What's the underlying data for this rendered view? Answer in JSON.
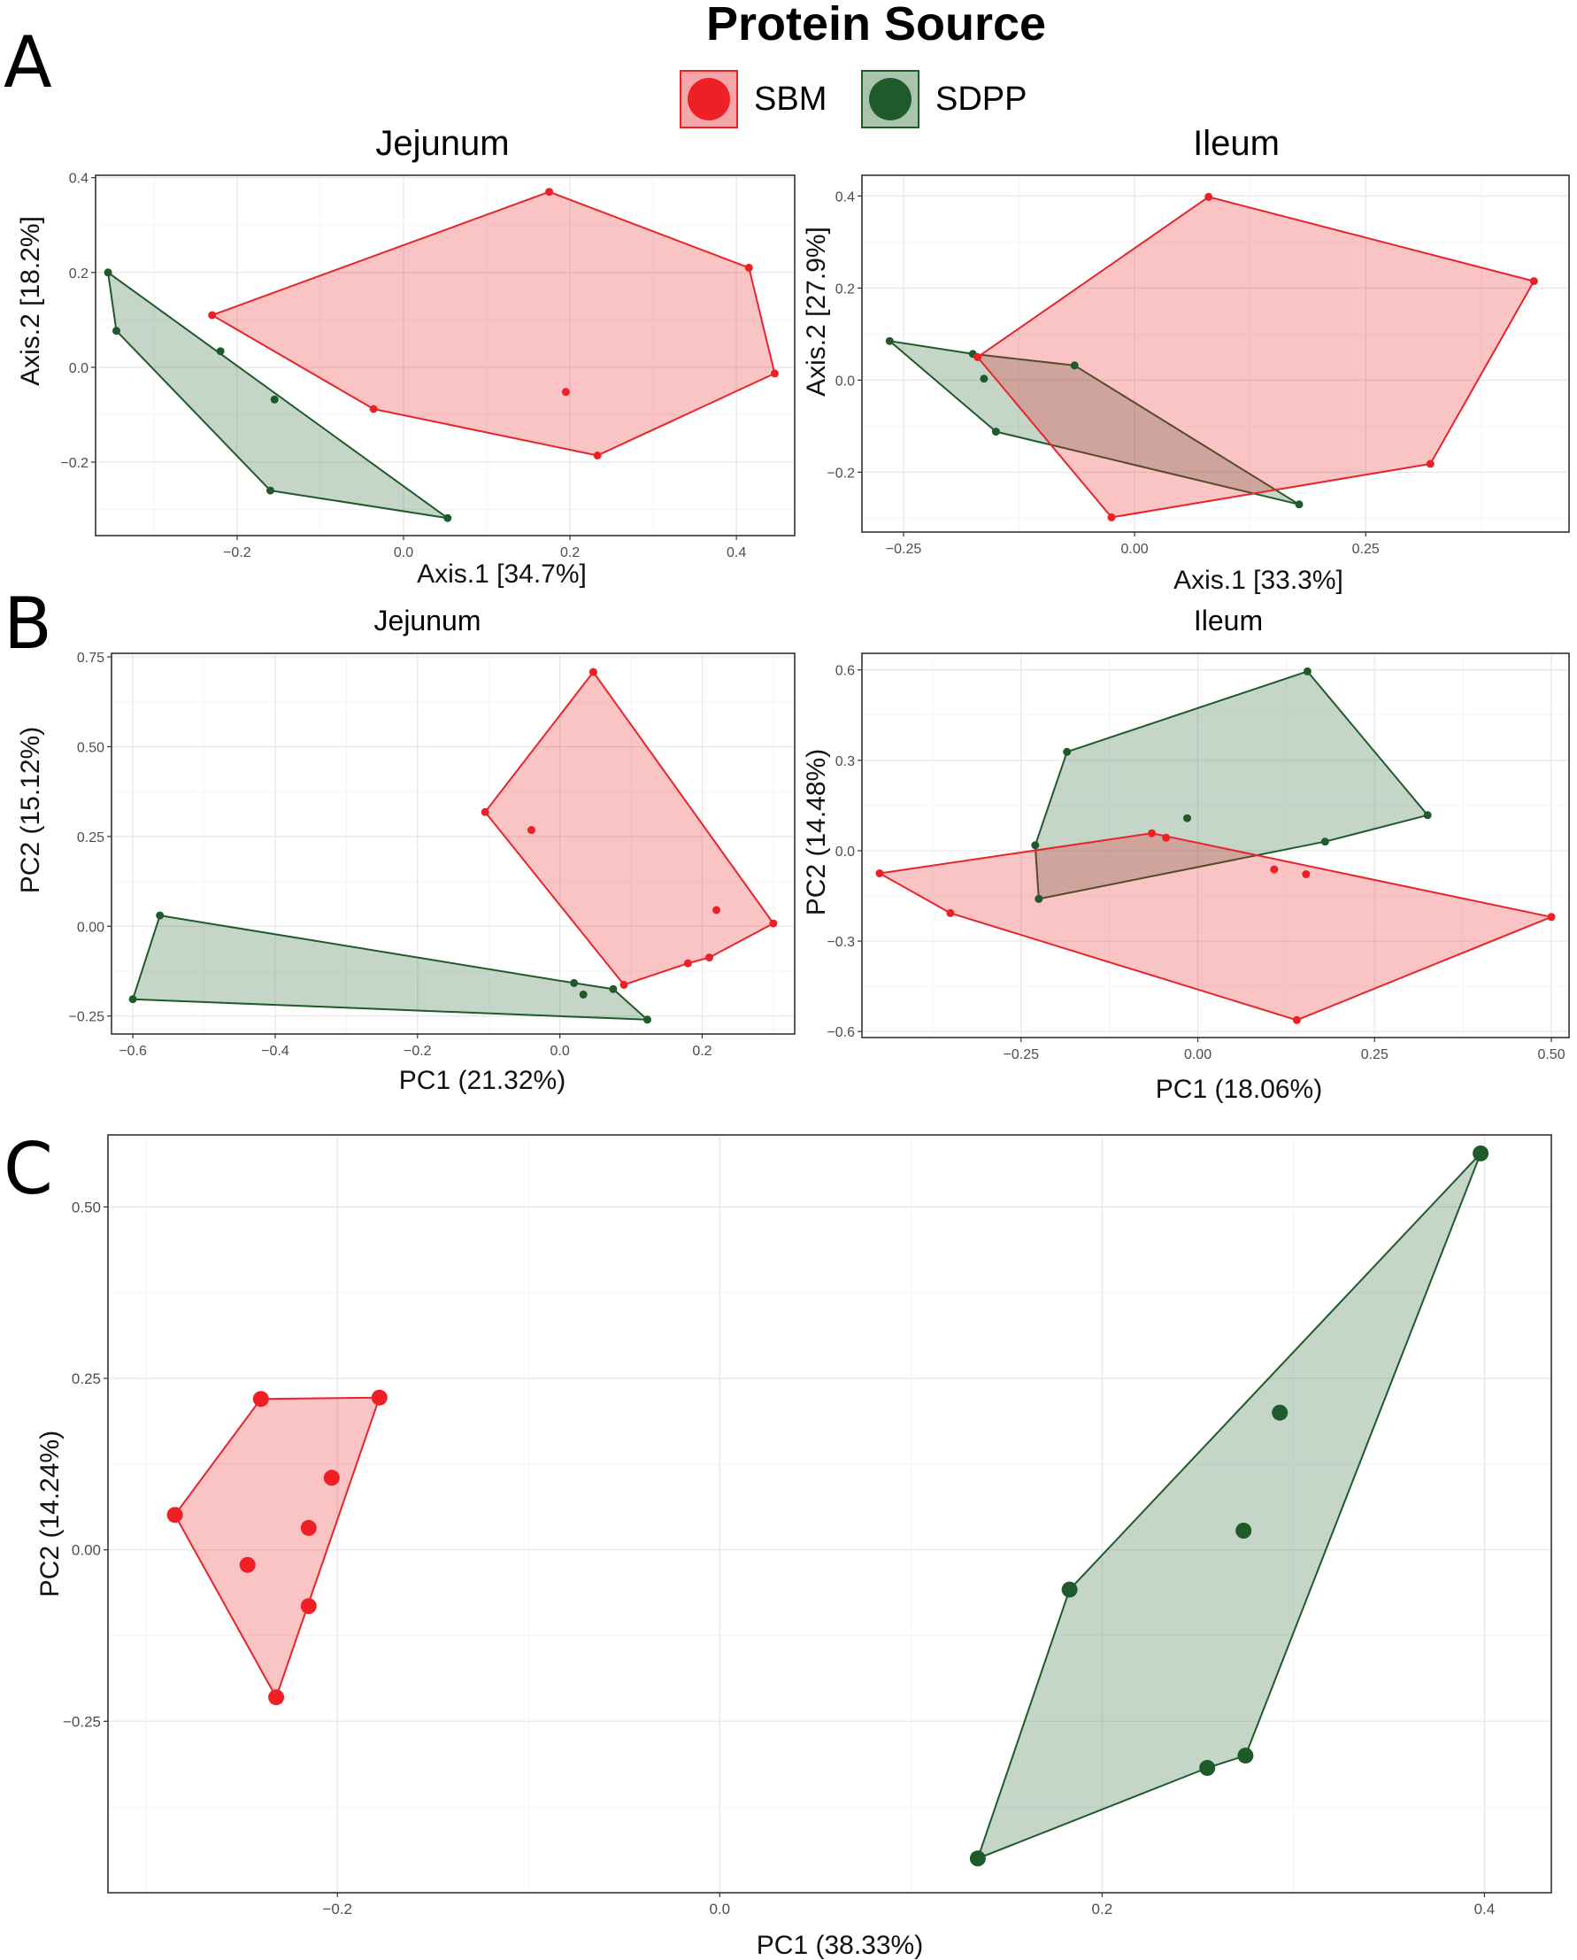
{
  "legend": {
    "title": "Protein Source",
    "items": [
      {
        "label": "SBM",
        "color": "#ee2026",
        "fill": "#f4a6a8"
      },
      {
        "label": "SDPP",
        "color": "#1f5b2a",
        "fill": "#a9c3ad"
      }
    ]
  },
  "panel_labels": {
    "a": "A",
    "b": "B",
    "c": "C"
  },
  "colors": {
    "sbm_point": "#ee2026",
    "sbm_line": "#e8242b",
    "sbm_fill": "rgba(238,32,38,0.27)",
    "sdpp_point": "#1f5b2a",
    "sdpp_line": "#1f5b2a",
    "sdpp_fill": "rgba(40,100,50,0.27)"
  },
  "chart_data": [
    {
      "id": "A-jejunum",
      "type": "scatter",
      "title": "Jejunum",
      "xlabel": "Axis.1   [34.7%]",
      "ylabel": "Axis.2   [18.2%]",
      "xlim": [
        -0.37,
        0.47
      ],
      "ylim": [
        -0.355,
        0.405
      ],
      "xticks": [
        -0.2,
        0.0,
        0.2,
        0.4
      ],
      "xtick_labels": [
        "−0.2",
        "0.0",
        "0.2",
        "0.4"
      ],
      "yticks": [
        -0.2,
        0.0,
        0.2,
        0.4
      ],
      "ytick_labels": [
        "−0.2",
        "0.0",
        "0.2",
        "0.4"
      ],
      "series": [
        {
          "name": "SBM",
          "points": [
            [
              -0.23,
              0.11
            ],
            [
              0.175,
              0.37
            ],
            [
              0.415,
              0.21
            ],
            [
              0.446,
              -0.013
            ],
            [
              0.233,
              -0.186
            ],
            [
              -0.036,
              -0.088
            ],
            [
              0.195,
              -0.052
            ]
          ],
          "hull": [
            [
              -0.23,
              0.11
            ],
            [
              0.175,
              0.37
            ],
            [
              0.415,
              0.21
            ],
            [
              0.446,
              -0.013
            ],
            [
              0.233,
              -0.186
            ],
            [
              -0.036,
              -0.088
            ]
          ]
        },
        {
          "name": "SDPP",
          "points": [
            [
              -0.355,
              0.2
            ],
            [
              -0.345,
              0.077
            ],
            [
              -0.22,
              0.034
            ],
            [
              -0.155,
              -0.068
            ],
            [
              -0.16,
              -0.26
            ],
            [
              0.053,
              -0.318
            ]
          ],
          "hull": [
            [
              -0.355,
              0.2
            ],
            [
              0.053,
              -0.318
            ],
            [
              -0.16,
              -0.26
            ],
            [
              -0.345,
              0.077
            ]
          ]
        }
      ]
    },
    {
      "id": "A-ileum",
      "type": "scatter",
      "title": "Ileum",
      "xlabel": "Axis.1   [33.3%]",
      "ylabel": "Axis.2   [27.9%]",
      "xlim": [
        -0.295,
        0.47
      ],
      "ylim": [
        -0.33,
        0.445
      ],
      "xticks": [
        -0.25,
        0.0,
        0.25
      ],
      "xtick_labels": [
        "−0.25",
        "0.00",
        "0.25"
      ],
      "yticks": [
        -0.2,
        0.0,
        0.2,
        0.4
      ],
      "ytick_labels": [
        "−0.2",
        "0.0",
        "0.2",
        "0.4"
      ],
      "series": [
        {
          "name": "SBM",
          "points": [
            [
              0.08,
              0.398
            ],
            [
              0.432,
              0.215
            ],
            [
              0.32,
              -0.182
            ],
            [
              -0.025,
              -0.298
            ],
            [
              -0.17,
              0.05
            ]
          ],
          "hull": [
            [
              0.08,
              0.398
            ],
            [
              0.432,
              0.215
            ],
            [
              0.32,
              -0.182
            ],
            [
              -0.025,
              -0.298
            ],
            [
              -0.17,
              0.05
            ]
          ]
        },
        {
          "name": "SDPP",
          "points": [
            [
              -0.265,
              0.085
            ],
            [
              -0.175,
              0.057
            ],
            [
              -0.163,
              0.003
            ],
            [
              -0.065,
              0.032
            ],
            [
              -0.15,
              -0.112
            ],
            [
              0.178,
              -0.27
            ]
          ],
          "hull": [
            [
              -0.265,
              0.085
            ],
            [
              -0.175,
              0.057
            ],
            [
              -0.065,
              0.032
            ],
            [
              0.178,
              -0.27
            ],
            [
              -0.15,
              -0.112
            ]
          ]
        }
      ]
    },
    {
      "id": "B-jejunum",
      "type": "scatter",
      "title": "Jejunum",
      "xlabel": "PC1 (21.32%)",
      "ylabel": "PC2 (15.12%)",
      "xlim": [
        -0.63,
        0.33
      ],
      "ylim": [
        -0.3,
        0.76
      ],
      "xticks": [
        -0.6,
        -0.4,
        -0.2,
        0.0,
        0.2
      ],
      "xtick_labels": [
        "−0.6",
        "−0.4",
        "−0.2",
        "0.0",
        "0.2"
      ],
      "yticks": [
        -0.25,
        0.0,
        0.25,
        0.5,
        0.75
      ],
      "ytick_labels": [
        "−0.25",
        "0.00",
        "0.25",
        "0.50",
        "0.75"
      ],
      "series": [
        {
          "name": "SBM",
          "points": [
            [
              0.047,
              0.708
            ],
            [
              0.3,
              0.008
            ],
            [
              0.21,
              -0.087
            ],
            [
              0.18,
              -0.103
            ],
            [
              0.09,
              -0.163
            ],
            [
              -0.105,
              0.318
            ],
            [
              -0.04,
              0.268
            ],
            [
              0.22,
              0.045
            ]
          ],
          "hull": [
            [
              0.047,
              0.708
            ],
            [
              0.3,
              0.008
            ],
            [
              0.21,
              -0.087
            ],
            [
              0.18,
              -0.103
            ],
            [
              0.09,
              -0.163
            ],
            [
              -0.105,
              0.318
            ]
          ]
        },
        {
          "name": "SDPP",
          "points": [
            [
              -0.562,
              0.03
            ],
            [
              -0.6,
              -0.203
            ],
            [
              0.123,
              -0.26
            ],
            [
              0.075,
              -0.175
            ],
            [
              0.02,
              -0.158
            ],
            [
              0.033,
              -0.19
            ]
          ],
          "hull": [
            [
              -0.562,
              0.03
            ],
            [
              0.02,
              -0.158
            ],
            [
              0.075,
              -0.175
            ],
            [
              0.123,
              -0.26
            ],
            [
              -0.6,
              -0.203
            ]
          ]
        }
      ]
    },
    {
      "id": "B-ileum",
      "type": "scatter",
      "title": "Ileum",
      "xlabel": "PC1 (18.06%)",
      "ylabel": "PC2 (14.48%)",
      "xlim": [
        -0.475,
        0.525
      ],
      "ylim": [
        -0.62,
        0.655
      ],
      "xticks": [
        -0.25,
        0.0,
        0.25,
        0.5
      ],
      "xtick_labels": [
        "−0.25",
        "0.00",
        "0.25",
        "0.50"
      ],
      "yticks": [
        -0.6,
        -0.3,
        0.0,
        0.3,
        0.6
      ],
      "ytick_labels": [
        "−0.6",
        "−0.3",
        "0.0",
        "0.3",
        "0.6"
      ],
      "series": [
        {
          "name": "SBM",
          "points": [
            [
              -0.45,
              -0.075
            ],
            [
              -0.065,
              0.058
            ],
            [
              -0.045,
              0.043
            ],
            [
              0.108,
              -0.062
            ],
            [
              0.153,
              -0.078
            ],
            [
              0.5,
              -0.22
            ],
            [
              0.14,
              -0.562
            ],
            [
              -0.35,
              -0.207
            ]
          ],
          "hull": [
            [
              -0.45,
              -0.075
            ],
            [
              -0.065,
              0.058
            ],
            [
              0.5,
              -0.22
            ],
            [
              0.14,
              -0.562
            ],
            [
              -0.35,
              -0.207
            ]
          ]
        },
        {
          "name": "SDPP",
          "points": [
            [
              -0.185,
              0.328
            ],
            [
              0.155,
              0.595
            ],
            [
              0.325,
              0.118
            ],
            [
              0.18,
              0.03
            ],
            [
              -0.015,
              0.108
            ],
            [
              -0.23,
              0.018
            ],
            [
              -0.225,
              -0.16
            ]
          ],
          "hull": [
            [
              -0.185,
              0.328
            ],
            [
              0.155,
              0.595
            ],
            [
              0.325,
              0.118
            ],
            [
              0.18,
              0.03
            ],
            [
              -0.225,
              -0.16
            ],
            [
              -0.23,
              0.018
            ]
          ]
        }
      ]
    },
    {
      "id": "C",
      "type": "scatter",
      "title": "",
      "xlabel": "PC1 (38.33%)",
      "ylabel": "PC2 (14.24%)",
      "xlim": [
        -0.32,
        0.435
      ],
      "ylim": [
        -0.5,
        0.605
      ],
      "xticks": [
        -0.2,
        0.0,
        0.2,
        0.4
      ],
      "xtick_labels": [
        "−0.2",
        "0.0",
        "0.2",
        "0.4"
      ],
      "yticks": [
        -0.25,
        0.0,
        0.25,
        0.5
      ],
      "ytick_labels": [
        "−0.25",
        "0.00",
        "0.25",
        "0.50"
      ],
      "series": [
        {
          "name": "SBM",
          "points": [
            [
              -0.285,
              0.051
            ],
            [
              -0.24,
              0.22
            ],
            [
              -0.178,
              0.222
            ],
            [
              -0.203,
              0.105
            ],
            [
              -0.215,
              0.032
            ],
            [
              -0.247,
              -0.022
            ],
            [
              -0.215,
              -0.082
            ],
            [
              -0.232,
              -0.215
            ]
          ],
          "hull": [
            [
              -0.285,
              0.051
            ],
            [
              -0.24,
              0.22
            ],
            [
              -0.178,
              0.222
            ],
            [
              -0.232,
              -0.215
            ]
          ]
        },
        {
          "name": "SDPP",
          "points": [
            [
              0.398,
              0.578
            ],
            [
              0.293,
              0.2
            ],
            [
              0.274,
              0.028
            ],
            [
              0.183,
              -0.058
            ],
            [
              0.275,
              -0.3
            ],
            [
              0.255,
              -0.318
            ],
            [
              0.135,
              -0.45
            ]
          ],
          "hull": [
            [
              0.183,
              -0.058
            ],
            [
              0.398,
              0.578
            ],
            [
              0.275,
              -0.3
            ],
            [
              0.255,
              -0.318
            ],
            [
              0.135,
              -0.45
            ]
          ]
        }
      ]
    }
  ]
}
